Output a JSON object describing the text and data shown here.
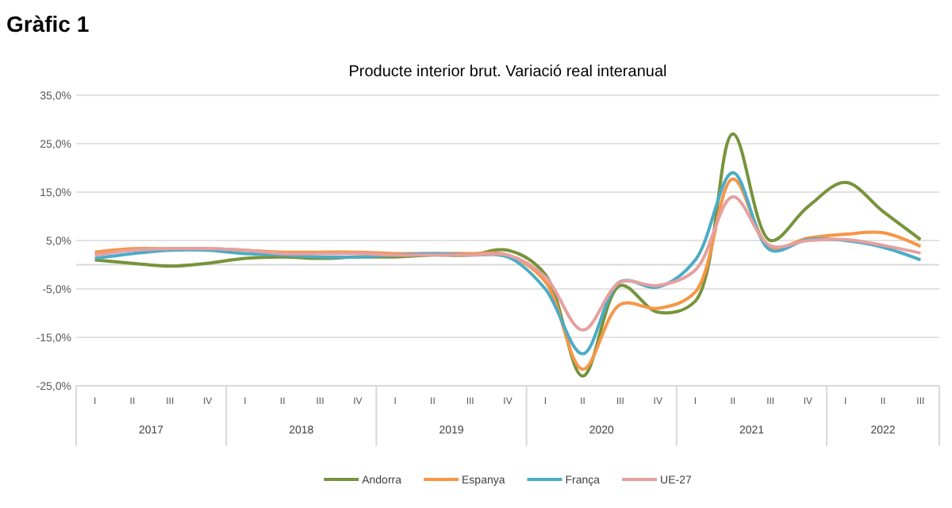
{
  "chart_data": {
    "type": "line",
    "title": "Producte interior brut. Variació real interanual",
    "subtitle": "Gràfic 1",
    "categories": [
      "I",
      "II",
      "III",
      "IV",
      "I",
      "II",
      "III",
      "IV",
      "I",
      "II",
      "III",
      "IV",
      "I",
      "II",
      "III",
      "IV",
      "I",
      "II",
      "III",
      "IV",
      "I",
      "II",
      "III"
    ],
    "annotations": [
      "2017",
      "2018",
      "2019",
      "2020",
      "2021",
      "2022"
    ],
    "series": [
      {
        "name": "Andorra",
        "color": "#77933c",
        "values": [
          1.0,
          0.3,
          -0.3,
          0.3,
          1.3,
          1.6,
          1.3,
          1.6,
          1.6,
          2,
          2,
          3,
          -2,
          -23,
          -4.3,
          -9.8,
          -7.5,
          27,
          5,
          12,
          17,
          11,
          5.2
        ]
      },
      {
        "name": "Espanya",
        "color": "#f79646",
        "values": [
          2.6,
          3.3,
          3.3,
          3.3,
          3,
          2.6,
          2.6,
          2.6,
          2.3,
          2.3,
          2.3,
          2,
          -3.5,
          -21.6,
          -8.2,
          -9,
          -5.6,
          17.7,
          3.6,
          5.5,
          6.3,
          6.6,
          3.8
        ]
      },
      {
        "name": "França",
        "color": "#4bacc6",
        "values": [
          1.3,
          2.3,
          3,
          3,
          2.3,
          2,
          1.6,
          1.6,
          2,
          2.3,
          2,
          1.6,
          -5,
          -18.4,
          -3.5,
          -4.6,
          1,
          19,
          3,
          5.2,
          5,
          3.6,
          1
        ]
      },
      {
        "name": "UE-27",
        "color": "#e6a0a0",
        "values": [
          2,
          3,
          3.3,
          3.3,
          3,
          2.3,
          2.3,
          2.3,
          2,
          2,
          2,
          2,
          -2.5,
          -13.5,
          -3.6,
          -4.3,
          -1.1,
          14,
          3.9,
          5,
          5.2,
          4,
          2.4
        ]
      }
    ],
    "ylim": [
      -25,
      35
    ],
    "yticks": [
      {
        "value": -25,
        "label": "-25,0%"
      },
      {
        "value": -15,
        "label": "-15,0%"
      },
      {
        "value": -5,
        "label": "-5,0%"
      },
      {
        "value": 5,
        "label": "5,0%"
      },
      {
        "value": 15,
        "label": "15,0%"
      },
      {
        "value": 25,
        "label": "25,0%"
      },
      {
        "value": 35,
        "label": "35,0%"
      }
    ],
    "grid": "y",
    "legend": "bottom",
    "marker": "none",
    "line_style": "solid"
  }
}
